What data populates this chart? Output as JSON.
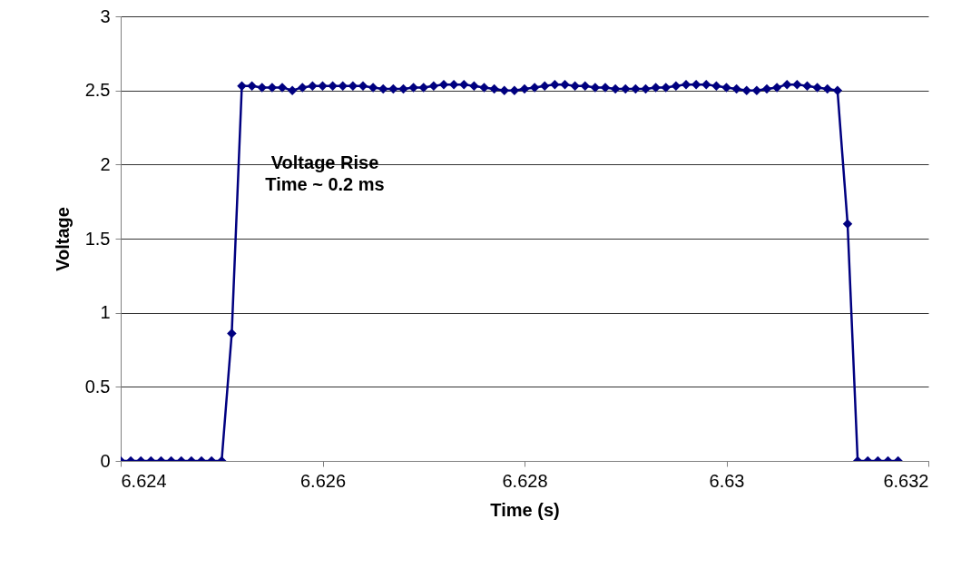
{
  "chart_data": {
    "type": "line",
    "xlabel": "Time (s)",
    "ylabel": "Voltage",
    "marker": "diamond",
    "grid": "y",
    "annotations": [
      "Voltage Rise\nTime ~ 0.2 ms"
    ],
    "xlim": [
      6.624,
      6.632
    ],
    "xticks": [
      6.624,
      6.626,
      6.628,
      6.63,
      6.632
    ],
    "ylim": [
      0,
      3
    ],
    "yticks": [
      0,
      0.5,
      1,
      1.5,
      2,
      2.5,
      3
    ],
    "series": [
      {
        "color": "#000080",
        "x": [
          6.624,
          6.6241,
          6.6242,
          6.6243,
          6.6244,
          6.6245,
          6.6246,
          6.6247,
          6.6248,
          6.6249,
          6.625,
          6.6251,
          6.6252,
          6.6253,
          6.6254,
          6.6255,
          6.6256,
          6.6257,
          6.6258,
          6.6259,
          6.626,
          6.6261,
          6.6262,
          6.6263,
          6.6264,
          6.6265,
          6.6266,
          6.6267,
          6.6268,
          6.6269,
          6.627,
          6.6271,
          6.6272,
          6.6273,
          6.6274,
          6.6275,
          6.6276,
          6.6277,
          6.6278,
          6.6279,
          6.628,
          6.6281,
          6.6282,
          6.6283,
          6.6284,
          6.6285,
          6.6286,
          6.6287,
          6.6288,
          6.6289,
          6.629,
          6.6291,
          6.6292,
          6.6293,
          6.6294,
          6.6295,
          6.6296,
          6.6297,
          6.6298,
          6.6299,
          6.63,
          6.6301,
          6.6302,
          6.6303,
          6.6304,
          6.6305,
          6.6306,
          6.6307,
          6.6308,
          6.6309,
          6.631,
          6.6311,
          6.6312,
          6.6313,
          6.6314,
          6.6315,
          6.6316,
          6.6317
        ],
        "values": [
          0,
          0,
          0,
          0,
          0,
          0,
          0,
          0,
          0,
          0,
          0,
          0.86,
          2.53,
          2.53,
          2.52,
          2.52,
          2.52,
          2.5,
          2.52,
          2.53,
          2.53,
          2.53,
          2.53,
          2.53,
          2.53,
          2.52,
          2.51,
          2.51,
          2.51,
          2.52,
          2.52,
          2.53,
          2.54,
          2.54,
          2.54,
          2.53,
          2.52,
          2.51,
          2.5,
          2.5,
          2.51,
          2.52,
          2.53,
          2.54,
          2.54,
          2.53,
          2.53,
          2.52,
          2.52,
          2.51,
          2.51,
          2.51,
          2.51,
          2.52,
          2.52,
          2.53,
          2.54,
          2.54,
          2.54,
          2.53,
          2.52,
          2.51,
          2.5,
          2.5,
          2.51,
          2.52,
          2.54,
          2.54,
          2.53,
          2.52,
          2.51,
          2.5,
          1.6,
          0,
          0,
          0,
          0,
          0
        ]
      }
    ]
  }
}
